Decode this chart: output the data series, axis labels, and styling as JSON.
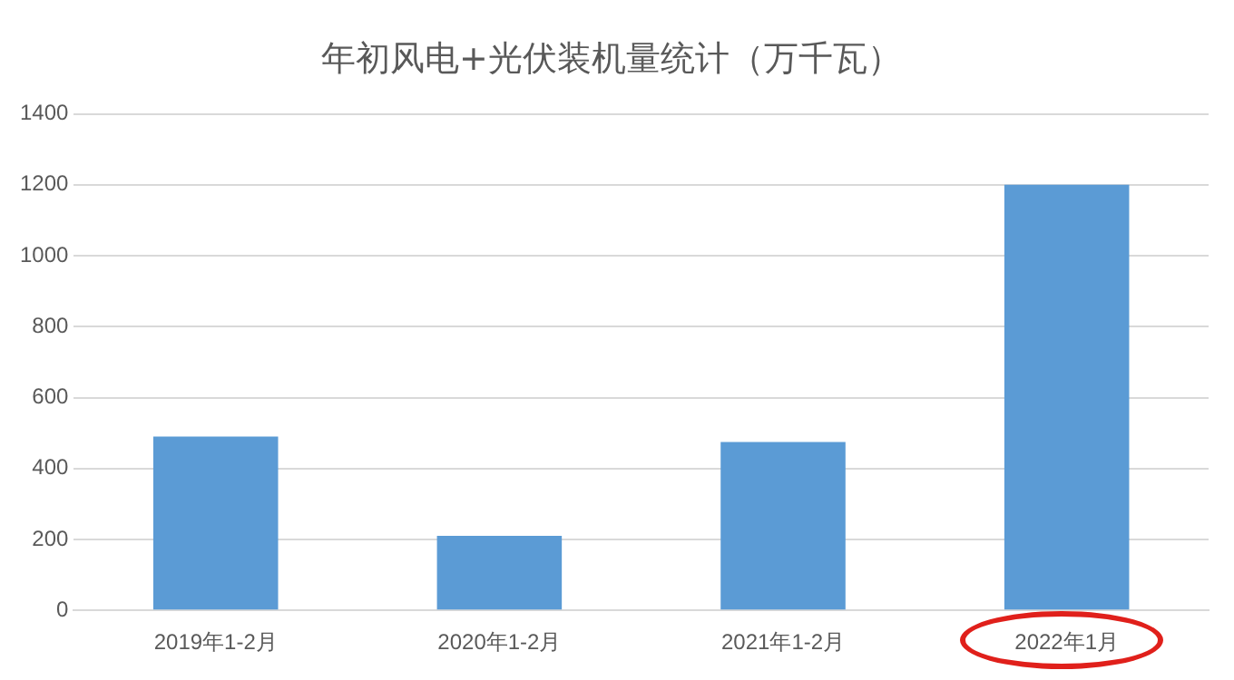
{
  "chart_data": {
    "type": "bar",
    "title": "年初风电+光伏装机量统计（万千瓦）",
    "categories": [
      "2019年1-2月",
      "2020年1-2月",
      "2021年1-2月",
      "2022年1月"
    ],
    "values": [
      490,
      210,
      475,
      1200
    ],
    "color": "#5b9bd5",
    "ylim": [
      0,
      1400
    ],
    "yticks": [
      0,
      200,
      400,
      600,
      800,
      1000,
      1200,
      1400
    ],
    "grid": "y",
    "legend": false
  }
}
